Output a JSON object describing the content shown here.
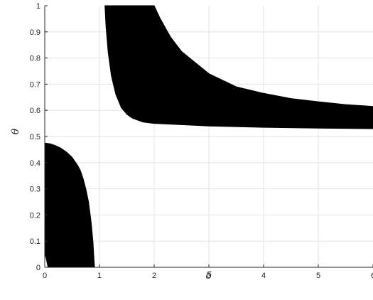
{
  "chart_data": {
    "type": "area",
    "title": "",
    "xlabel": "δ",
    "ylabel": "θ",
    "xlim": [
      0,
      6
    ],
    "ylim": [
      0,
      1
    ],
    "grid": true,
    "x_ticks": [
      "0",
      "1",
      "2",
      "3",
      "4",
      "5",
      "6"
    ],
    "y_ticks": [
      "0",
      "0.1",
      "0.2",
      "0.3",
      "0.4",
      "0.5",
      "0.6",
      "0.7",
      "0.8",
      "0.9",
      "1"
    ],
    "fill_color": "#000000",
    "regions": [
      {
        "boundary": [
          [
            0,
            0.475
          ],
          [
            0.1,
            0.472
          ],
          [
            0.2,
            0.465
          ],
          [
            0.3,
            0.455
          ],
          [
            0.4,
            0.44
          ],
          [
            0.5,
            0.42
          ],
          [
            0.6,
            0.39
          ],
          [
            0.65,
            0.37
          ],
          [
            0.7,
            0.34
          ],
          [
            0.75,
            0.3
          ],
          [
            0.8,
            0.25
          ],
          [
            0.85,
            0.17
          ],
          [
            0.88,
            0.1
          ],
          [
            0.9,
            0.03
          ],
          [
            0.91,
            0
          ],
          [
            0.06,
            0
          ],
          [
            0.04,
            0.02
          ],
          [
            0.02,
            0.04
          ],
          [
            0,
            0.05
          ]
        ]
      },
      {
        "boundary": [
          [
            1.1,
            1
          ],
          [
            2.0,
            1
          ],
          [
            2.1,
            0.955
          ],
          [
            2.3,
            0.88
          ],
          [
            2.5,
            0.825
          ],
          [
            3.0,
            0.74
          ],
          [
            3.5,
            0.69
          ],
          [
            4.0,
            0.665
          ],
          [
            4.5,
            0.645
          ],
          [
            5.0,
            0.633
          ],
          [
            5.5,
            0.622
          ],
          [
            6.0,
            0.615
          ],
          [
            6.0,
            0.53
          ],
          [
            5.0,
            0.532
          ],
          [
            4.0,
            0.535
          ],
          [
            3.0,
            0.54
          ],
          [
            2.5,
            0.545
          ],
          [
            2.0,
            0.55
          ],
          [
            1.8,
            0.555
          ],
          [
            1.6,
            0.57
          ],
          [
            1.5,
            0.585
          ],
          [
            1.4,
            0.61
          ],
          [
            1.3,
            0.66
          ],
          [
            1.22,
            0.73
          ],
          [
            1.16,
            0.82
          ],
          [
            1.12,
            0.92
          ],
          [
            1.1,
            1
          ]
        ]
      }
    ]
  }
}
